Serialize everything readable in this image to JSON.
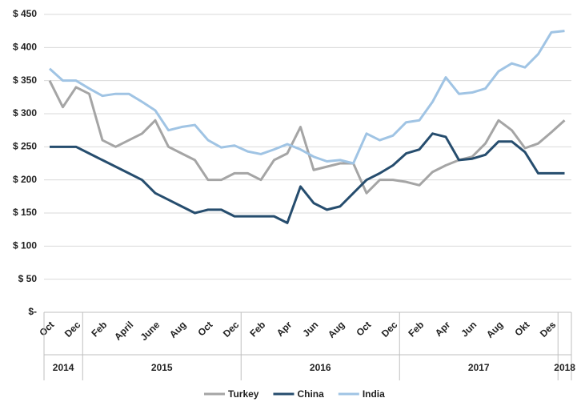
{
  "chart_data": {
    "type": "line",
    "categories": [
      "Oct",
      null,
      "Dec",
      null,
      "Feb",
      null,
      "April",
      null,
      "June",
      null,
      "Aug",
      null,
      "Oct",
      null,
      "Dec",
      null,
      "Feb",
      null,
      "Apr",
      null,
      "Jun",
      null,
      "Aug",
      null,
      "Oct",
      null,
      "Dec",
      null,
      "Feb",
      null,
      "Apr",
      null,
      "Jun",
      null,
      "Aug",
      null,
      "Okt",
      null,
      "Des",
      null
    ],
    "x_groups": [
      {
        "label": "2014",
        "months": 3
      },
      {
        "label": "2015",
        "months": 12
      },
      {
        "label": "2016",
        "months": 12
      },
      {
        "label": "2017",
        "months": 12
      },
      {
        "label": "2018",
        "months": 1
      }
    ],
    "series": [
      {
        "name": "Turkey",
        "color": "#a5a5a5",
        "values": [
          350,
          310,
          340,
          330,
          260,
          250,
          260,
          270,
          290,
          250,
          240,
          230,
          200,
          200,
          210,
          210,
          200,
          230,
          240,
          280,
          215,
          220,
          225,
          225,
          180,
          200,
          200,
          197,
          192,
          212,
          222,
          230,
          235,
          255,
          290,
          275,
          248,
          255,
          272,
          290
        ]
      },
      {
        "name": "China",
        "color": "#264d6e",
        "values": [
          250,
          250,
          250,
          240,
          230,
          220,
          210,
          200,
          180,
          170,
          160,
          150,
          155,
          155,
          145,
          145,
          145,
          145,
          135,
          190,
          165,
          155,
          160,
          180,
          200,
          210,
          222,
          240,
          246,
          270,
          265,
          230,
          232,
          238,
          258,
          258,
          242,
          210,
          210,
          210
        ]
      },
      {
        "name": "India",
        "color": "#a0c4e4",
        "values": [
          368,
          350,
          350,
          338,
          327,
          330,
          330,
          318,
          305,
          275,
          280,
          283,
          260,
          249,
          252,
          243,
          239,
          246,
          254,
          246,
          235,
          228,
          230,
          225,
          270,
          260,
          267,
          287,
          290,
          318,
          355,
          330,
          332,
          338,
          364,
          376,
          370,
          390,
          423,
          425
        ]
      }
    ],
    "ylim": [
      0,
      450
    ],
    "yticks": [
      {
        "value": 0,
        "label": "$-"
      },
      {
        "value": 50,
        "label": "$ 50"
      },
      {
        "value": 100,
        "label": "$ 100"
      },
      {
        "value": 150,
        "label": "$ 150"
      },
      {
        "value": 200,
        "label": "$ 200"
      },
      {
        "value": 250,
        "label": "$ 250"
      },
      {
        "value": 300,
        "label": "$ 300"
      },
      {
        "value": 350,
        "label": "$ 350"
      },
      {
        "value": 400,
        "label": "$ 400"
      },
      {
        "value": 450,
        "label": "$ 450"
      }
    ],
    "grid": true,
    "legend": "bottom"
  }
}
